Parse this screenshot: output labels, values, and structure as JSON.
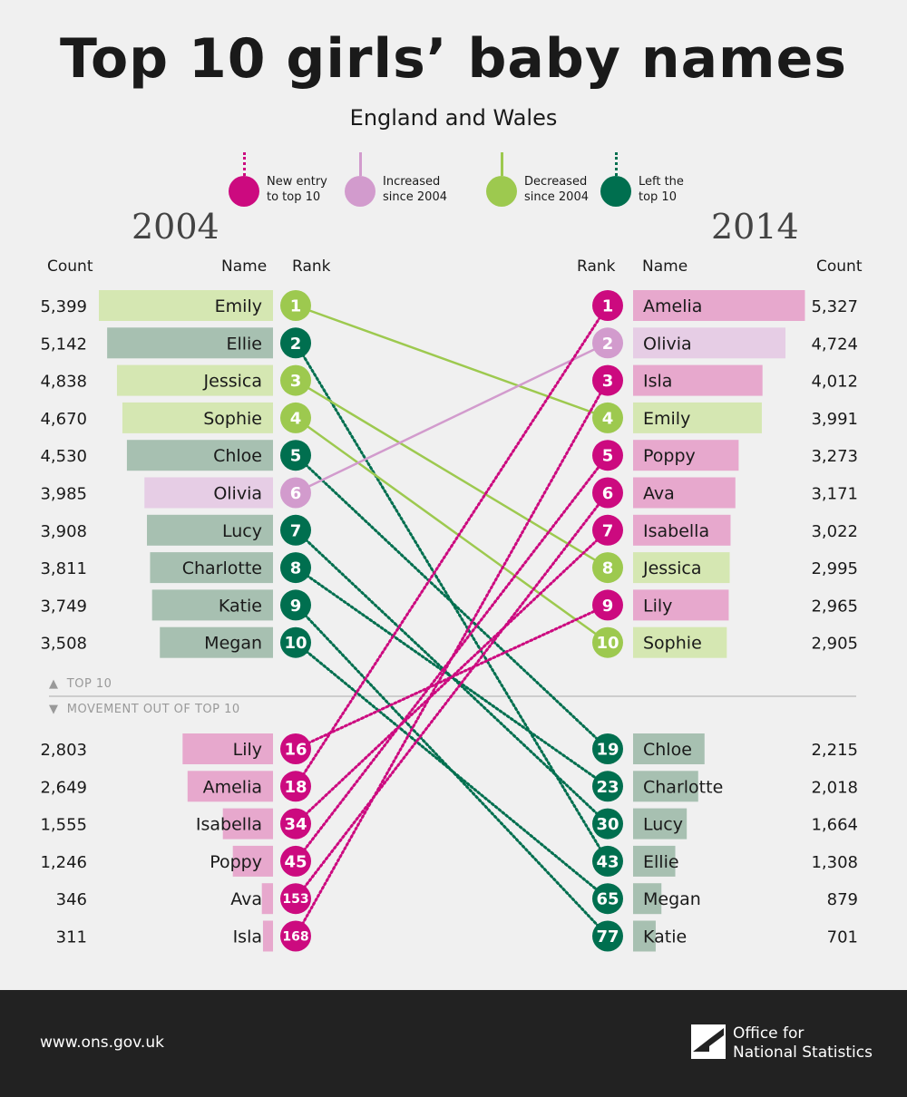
{
  "header": {
    "title": "Top 10 girls’ baby names",
    "subtitle": "England and Wales"
  },
  "legend": [
    {
      "label_1": "New entry",
      "label_2": "to top 10",
      "color": "#cc0a7f",
      "stem": "dotted"
    },
    {
      "label_1": "Increased",
      "label_2": "since 2004",
      "color": "#d29bcd",
      "stem": "solid"
    },
    {
      "label_1": "Decreased",
      "label_2": "since 2004",
      "color": "#9dc94f",
      "stem": "solid"
    },
    {
      "label_1": "Left the",
      "label_2": "top 10",
      "color": "#006f4f",
      "stem": "dotted"
    }
  ],
  "columns": {
    "year_left": "2004",
    "year_right": "2014",
    "count": "Count",
    "name": "Name",
    "rank": "Rank"
  },
  "section_labels": {
    "top10": "TOP 10",
    "movement": "MOVEMENT OUT OF TOP 10"
  },
  "footer": {
    "url": "www.ons.gov.uk",
    "logo_line1": "Office for",
    "logo_line2": "National Statistics"
  },
  "colors": {
    "new_entry": "#cc0a7f",
    "increased": "#d29bcd",
    "decreased": "#9dc94f",
    "left": "#006f4f",
    "bar_new": "#e7a8cd",
    "bar_increased": "#e6cde5",
    "bar_decreased": "#d5e7b2",
    "bar_left": "#a7c0b1"
  },
  "chart_data": {
    "type": "table",
    "left": [
      {
        "name": "Emily",
        "rank": "1",
        "count": "5,399",
        "value": 5399,
        "status": "decreased"
      },
      {
        "name": "Ellie",
        "rank": "2",
        "count": "5,142",
        "value": 5142,
        "status": "left"
      },
      {
        "name": "Jessica",
        "rank": "3",
        "count": "4,838",
        "value": 4838,
        "status": "decreased"
      },
      {
        "name": "Sophie",
        "rank": "4",
        "count": "4,670",
        "value": 4670,
        "status": "decreased"
      },
      {
        "name": "Chloe",
        "rank": "5",
        "count": "4,530",
        "value": 4530,
        "status": "left"
      },
      {
        "name": "Olivia",
        "rank": "6",
        "count": "3,985",
        "value": 3985,
        "status": "increased"
      },
      {
        "name": "Lucy",
        "rank": "7",
        "count": "3,908",
        "value": 3908,
        "status": "left"
      },
      {
        "name": "Charlotte",
        "rank": "8",
        "count": "3,811",
        "value": 3811,
        "status": "left"
      },
      {
        "name": "Katie",
        "rank": "9",
        "count": "3,749",
        "value": 3749,
        "status": "left"
      },
      {
        "name": "Megan",
        "rank": "10",
        "count": "3,508",
        "value": 3508,
        "status": "left"
      },
      {
        "name": "Lily",
        "rank": "16",
        "count": "2,803",
        "value": 2803,
        "status": "new"
      },
      {
        "name": "Amelia",
        "rank": "18",
        "count": "2,649",
        "value": 2649,
        "status": "new"
      },
      {
        "name": "Isabella",
        "rank": "34",
        "count": "1,555",
        "value": 1555,
        "status": "new"
      },
      {
        "name": "Poppy",
        "rank": "45",
        "count": "1,246",
        "value": 1246,
        "status": "new"
      },
      {
        "name": "Ava",
        "rank": "153",
        "count": "346",
        "value": 346,
        "status": "new"
      },
      {
        "name": "Isla",
        "rank": "168",
        "count": "311",
        "value": 311,
        "status": "new"
      }
    ],
    "right": [
      {
        "name": "Amelia",
        "rank": "1",
        "count": "5,327",
        "value": 5327,
        "status": "new"
      },
      {
        "name": "Olivia",
        "rank": "2",
        "count": "4,724",
        "value": 4724,
        "status": "increased"
      },
      {
        "name": "Isla",
        "rank": "3",
        "count": "4,012",
        "value": 4012,
        "status": "new"
      },
      {
        "name": "Emily",
        "rank": "4",
        "count": "3,991",
        "value": 3991,
        "status": "decreased"
      },
      {
        "name": "Poppy",
        "rank": "5",
        "count": "3,273",
        "value": 3273,
        "status": "new"
      },
      {
        "name": "Ava",
        "rank": "6",
        "count": "3,171",
        "value": 3171,
        "status": "new"
      },
      {
        "name": "Isabella",
        "rank": "7",
        "count": "3,022",
        "value": 3022,
        "status": "new"
      },
      {
        "name": "Jessica",
        "rank": "8",
        "count": "2,995",
        "value": 2995,
        "status": "decreased"
      },
      {
        "name": "Lily",
        "rank": "9",
        "count": "2,965",
        "value": 2965,
        "status": "new"
      },
      {
        "name": "Sophie",
        "rank": "10",
        "count": "2,905",
        "value": 2905,
        "status": "decreased"
      },
      {
        "name": "Chloe",
        "rank": "19",
        "count": "2,215",
        "value": 2215,
        "status": "left"
      },
      {
        "name": "Charlotte",
        "rank": "23",
        "count": "2,018",
        "value": 2018,
        "status": "left"
      },
      {
        "name": "Lucy",
        "rank": "30",
        "count": "1,664",
        "value": 1664,
        "status": "left"
      },
      {
        "name": "Ellie",
        "rank": "43",
        "count": "1,308",
        "value": 1308,
        "status": "left"
      },
      {
        "name": "Megan",
        "rank": "65",
        "count": "879",
        "value": 879,
        "status": "left"
      },
      {
        "name": "Katie",
        "rank": "77",
        "count": "701",
        "value": 701,
        "status": "left"
      }
    ]
  }
}
